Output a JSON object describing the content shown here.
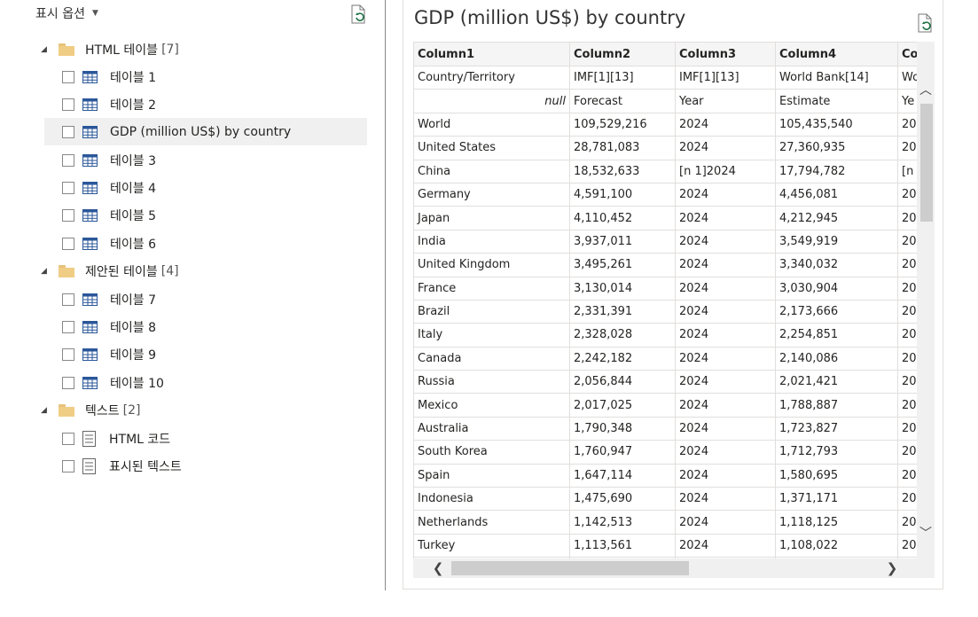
{
  "navigator": {
    "display_options_label": "표시 옵션",
    "groups": [
      {
        "label": "HTML 테이블",
        "count": "[7]"
      },
      {
        "label": "제안된 테이블",
        "count": "[4]"
      },
      {
        "label": "텍스트",
        "count": "[2]"
      }
    ],
    "items": [
      {
        "label": "테이블 1"
      },
      {
        "label": "테이블 2"
      },
      {
        "label": "GDP (million US$) by country"
      },
      {
        "label": "테이블 3"
      },
      {
        "label": "테이블 4"
      },
      {
        "label": "테이블 5"
      },
      {
        "label": "테이블 6"
      },
      {
        "label": "테이블 7"
      },
      {
        "label": "테이블 8"
      },
      {
        "label": "테이블 9"
      },
      {
        "label": "테이블 10"
      },
      {
        "label": "HTML 코드"
      },
      {
        "label": "표시된 텍스트"
      }
    ]
  },
  "preview": {
    "title": "GDP (million US$) by country",
    "columns": [
      "Column1",
      "Column2",
      "Column3",
      "Column4",
      "Colum"
    ],
    "rows": [
      [
        "Country/Territory",
        "IMF[1][13]",
        "IMF[1][13]",
        "World Bank[14]",
        "Wo"
      ],
      [
        "null",
        "Forecast",
        "Year",
        "Estimate",
        "Ye"
      ],
      [
        "World",
        "109,529,216",
        "2024",
        "105,435,540",
        "20"
      ],
      [
        "United States",
        "28,781,083",
        "2024",
        "27,360,935",
        "20"
      ],
      [
        "China",
        "18,532,633",
        "[n 1]2024",
        "17,794,782",
        "[n"
      ],
      [
        "Germany",
        "4,591,100",
        "2024",
        "4,456,081",
        "20"
      ],
      [
        "Japan",
        "4,110,452",
        "2024",
        "4,212,945",
        "20"
      ],
      [
        "India",
        "3,937,011",
        "2024",
        "3,549,919",
        "20"
      ],
      [
        "United Kingdom",
        "3,495,261",
        "2024",
        "3,340,032",
        "20"
      ],
      [
        "France",
        "3,130,014",
        "2024",
        "3,030,904",
        "20"
      ],
      [
        "Brazil",
        "2,331,391",
        "2024",
        "2,173,666",
        "20"
      ],
      [
        "Italy",
        "2,328,028",
        "2024",
        "2,254,851",
        "20"
      ],
      [
        "Canada",
        "2,242,182",
        "2024",
        "2,140,086",
        "20"
      ],
      [
        "Russia",
        "2,056,844",
        "2024",
        "2,021,421",
        "20"
      ],
      [
        "Mexico",
        "2,017,025",
        "2024",
        "1,788,887",
        "20"
      ],
      [
        "Australia",
        "1,790,348",
        "2024",
        "1,723,827",
        "20"
      ],
      [
        "South Korea",
        "1,760,947",
        "2024",
        "1,712,793",
        "20"
      ],
      [
        "Spain",
        "1,647,114",
        "2024",
        "1,580,695",
        "20"
      ],
      [
        "Indonesia",
        "1,475,690",
        "2024",
        "1,371,171",
        "20"
      ],
      [
        "Netherlands",
        "1,142,513",
        "2024",
        "1,118,125",
        "20"
      ],
      [
        "Turkey",
        "1,113,561",
        "2024",
        "1,108,022",
        "20"
      ],
      [
        "",
        "",
        "",
        "",
        ""
      ]
    ]
  },
  "colors": {
    "selected_bg": "#f0f0f0",
    "folder": "#f0cd84",
    "table_icon": "#2b579a"
  }
}
